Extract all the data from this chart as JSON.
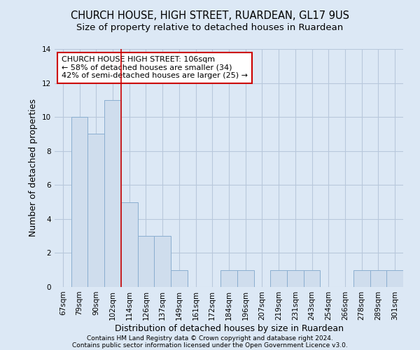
{
  "title": "CHURCH HOUSE, HIGH STREET, RUARDEAN, GL17 9US",
  "subtitle": "Size of property relative to detached houses in Ruardean",
  "xlabel": "Distribution of detached houses by size in Ruardean",
  "ylabel": "Number of detached properties",
  "categories": [
    "67sqm",
    "79sqm",
    "90sqm",
    "102sqm",
    "114sqm",
    "126sqm",
    "137sqm",
    "149sqm",
    "161sqm",
    "172sqm",
    "184sqm",
    "196sqm",
    "207sqm",
    "219sqm",
    "231sqm",
    "243sqm",
    "254sqm",
    "266sqm",
    "278sqm",
    "289sqm",
    "301sqm"
  ],
  "values": [
    0,
    10,
    9,
    11,
    5,
    3,
    3,
    1,
    0,
    0,
    1,
    1,
    0,
    1,
    1,
    1,
    0,
    0,
    1,
    1,
    1
  ],
  "bar_color": "#cfdded",
  "bar_edge_color": "#8aaed0",
  "grid_color": "#b8c8dc",
  "bg_color": "#dce8f5",
  "ref_line_color": "#cc0000",
  "ref_line_x": 3.5,
  "annotation_text": "CHURCH HOUSE HIGH STREET: 106sqm\n← 58% of detached houses are smaller (34)\n42% of semi-detached houses are larger (25) →",
  "annotation_box_color": "#ffffff",
  "annotation_box_edge": "#cc0000",
  "ylim": [
    0,
    14
  ],
  "yticks": [
    0,
    2,
    4,
    6,
    8,
    10,
    12,
    14
  ],
  "footer_line1": "Contains HM Land Registry data © Crown copyright and database right 2024.",
  "footer_line2": "Contains public sector information licensed under the Open Government Licence v3.0.",
  "title_fontsize": 10.5,
  "subtitle_fontsize": 9.5,
  "label_fontsize": 9,
  "tick_fontsize": 7.5,
  "annotation_fontsize": 8,
  "footer_fontsize": 6.5
}
